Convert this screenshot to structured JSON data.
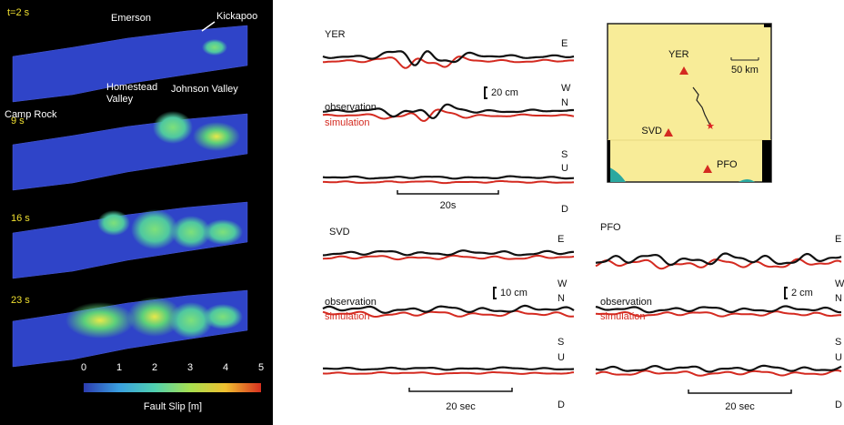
{
  "fault_panel": {
    "place_labels": {
      "emerson": "Emerson",
      "kickapoo": "Kickapoo",
      "homestead": [
        "Homestead",
        "Valley"
      ],
      "johnson": "Johnson Valley",
      "camp_rock": "Camp Rock"
    },
    "times": [
      "t=2 s",
      "9 s",
      "16 s",
      "23 s"
    ],
    "colorbar": {
      "ticks": [
        0,
        1,
        2,
        3,
        4,
        5
      ],
      "label": "Fault Slip [m]"
    }
  },
  "stations": [
    {
      "name": "YER",
      "components": [
        "E",
        "W",
        "N",
        "S",
        "U",
        "D"
      ],
      "amplitude_scale": "20 cm",
      "time_scale": "20s",
      "legend": [
        "observation",
        "simulation"
      ]
    },
    {
      "name": "SVD",
      "components": [
        "E",
        "W",
        "N",
        "S",
        "U",
        "D"
      ],
      "amplitude_scale": "10 cm",
      "time_scale": "20 sec",
      "legend": [
        "observation",
        "simulation"
      ]
    },
    {
      "name": "PFO",
      "components": [
        "E",
        "W",
        "N",
        "S",
        "U",
        "D"
      ],
      "amplitude_scale": "2 cm",
      "time_scale": "20 sec",
      "legend": [
        "observation",
        "simulation"
      ]
    }
  ],
  "map": {
    "stations": [
      "YER",
      "SVD",
      "PFO"
    ],
    "scale": "50 km"
  }
}
